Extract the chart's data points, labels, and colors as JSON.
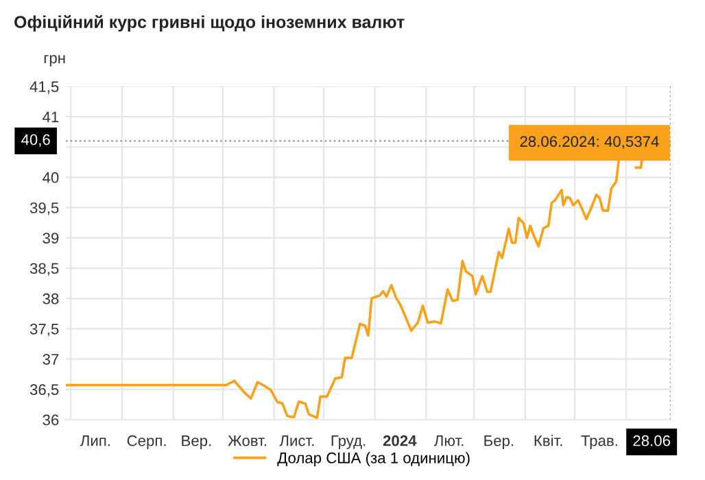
{
  "chart_data": {
    "type": "line",
    "title": "Офіційний курс гривні щодо іноземних валют",
    "ylabel": "грн",
    "x": [
      "2023-06-28",
      "2023-10-03",
      "2023-10-08",
      "2023-10-14",
      "2023-10-18",
      "2023-10-22",
      "2023-10-26",
      "2023-10-30",
      "2023-11-03",
      "2023-11-06",
      "2023-11-09",
      "2023-11-13",
      "2023-11-16",
      "2023-11-20",
      "2023-11-22",
      "2023-11-27",
      "2023-11-29",
      "2023-12-03",
      "2023-12-08",
      "2023-12-12",
      "2023-12-14",
      "2023-12-18",
      "2023-12-23",
      "2023-12-26",
      "2023-12-28",
      "2023-12-30",
      "2024-01-04",
      "2024-01-06",
      "2024-01-08",
      "2024-01-11",
      "2024-01-14",
      "2024-01-16",
      "2024-01-19",
      "2024-01-23",
      "2024-01-27",
      "2024-01-30",
      "2024-02-02",
      "2024-02-06",
      "2024-02-10",
      "2024-02-14",
      "2024-02-17",
      "2024-02-20",
      "2024-02-23",
      "2024-02-25",
      "2024-02-29",
      "2024-03-02",
      "2024-03-06",
      "2024-03-09",
      "2024-03-11",
      "2024-03-16",
      "2024-03-18",
      "2024-03-22",
      "2024-03-24",
      "2024-03-26",
      "2024-03-28",
      "2024-03-31",
      "2024-04-02",
      "2024-04-04",
      "2024-04-06",
      "2024-04-09",
      "2024-04-12",
      "2024-04-15",
      "2024-04-17",
      "2024-04-19",
      "2024-04-23",
      "2024-04-24",
      "2024-04-26",
      "2024-04-28",
      "2024-04-30",
      "2024-05-03",
      "2024-05-05",
      "2024-05-08",
      "2024-05-11",
      "2024-05-14",
      "2024-05-16",
      "2024-05-18",
      "2024-05-21",
      "2024-05-23",
      "2024-05-26",
      "2024-05-28",
      "2024-06-01",
      "2024-06-07",
      "2024-06-10",
      "2024-06-11",
      "2024-06-28"
    ],
    "series": [
      {
        "name": "Долар США (за 1 одиницю)",
        "color": "#f9a11b",
        "values": [
          36.57,
          36.57,
          36.64,
          36.45,
          36.35,
          36.62,
          36.56,
          36.49,
          36.29,
          36.27,
          36.06,
          36.04,
          36.3,
          36.26,
          36.09,
          36.03,
          36.38,
          36.38,
          36.68,
          36.7,
          37.02,
          37.02,
          37.58,
          37.55,
          37.39,
          38.0,
          38.05,
          38.12,
          38.03,
          38.22,
          38.0,
          37.92,
          37.73,
          37.47,
          37.6,
          37.88,
          37.6,
          37.62,
          37.59,
          38.15,
          37.96,
          37.98,
          38.62,
          38.45,
          38.37,
          38.07,
          38.37,
          38.11,
          38.11,
          38.77,
          38.67,
          39.15,
          38.92,
          38.92,
          39.33,
          39.24,
          39.0,
          39.2,
          39.05,
          38.86,
          39.16,
          39.2,
          39.58,
          39.62,
          39.79,
          39.54,
          39.67,
          39.66,
          39.54,
          39.62,
          39.5,
          39.31,
          39.5,
          39.71,
          39.66,
          39.45,
          39.45,
          39.81,
          39.93,
          40.37,
          null,
          40.16,
          40.16,
          40.41,
          40.5374
        ]
      }
    ],
    "xlim": [
      "2023-06-28",
      "2024-06-28"
    ],
    "xticks": [
      {
        "value": "2023-07-01",
        "label": null
      },
      {
        "value": "2023-08-01",
        "label": null
      },
      {
        "value": "2023-09-01",
        "label": null
      },
      {
        "value": "2023-10-01",
        "label": null
      },
      {
        "value": "2023-11-01",
        "label": null
      },
      {
        "value": "2023-12-01",
        "label": null
      },
      {
        "value": "2024-01-01",
        "label": null
      },
      {
        "value": "2024-02-01",
        "label": null
      },
      {
        "value": "2024-03-01",
        "label": null
      },
      {
        "value": "2024-04-01",
        "label": null
      },
      {
        "value": "2024-05-01",
        "label": null
      },
      {
        "value": "2024-06-01",
        "label": null
      },
      {
        "value": "2023-07-16",
        "label": "Лип."
      },
      {
        "value": "2023-08-16",
        "label": "Серп."
      },
      {
        "value": "2023-09-15",
        "label": "Вер."
      },
      {
        "value": "2023-10-16",
        "label": "Жовт."
      },
      {
        "value": "2023-11-15",
        "label": "Лист."
      },
      {
        "value": "2023-12-16",
        "label": "Груд."
      },
      {
        "value": "2024-01-16",
        "label": "2024"
      },
      {
        "value": "2024-02-15",
        "label": "Лют."
      },
      {
        "value": "2024-03-16",
        "label": "Бер."
      },
      {
        "value": "2024-04-15",
        "label": "Квіт."
      },
      {
        "value": "2024-05-16",
        "label": "Трав."
      },
      {
        "value": "2024-06-28",
        "label": "28.06"
      }
    ],
    "ylim": [
      36,
      41.5
    ],
    "yticks": [
      36,
      {
        "value": 36.5,
        "label": "36,5"
      },
      37,
      {
        "value": 37.5,
        "label": "37,5"
      },
      38,
      {
        "value": 38.5,
        "label": "38,5"
      },
      39,
      {
        "value": 39.5,
        "label": "39,5"
      },
      40,
      {
        "value": 40.5,
        "label": null
      },
      41,
      {
        "value": 41.5,
        "label": "41,5"
      }
    ],
    "grid": true,
    "legend": "bottom",
    "marker": "none",
    "line_style": "solid",
    "ref_lines": [
      {
        "axis": "y",
        "value": 40.6,
        "label": "40,6",
        "color": "#999999",
        "line_style": "dotted"
      },
      {
        "axis": "x",
        "value": "2024-06-28",
        "color": "#999999",
        "line_style": "dotted"
      }
    ],
    "annotations": [
      {
        "text": "28.06.2024: 40,5374",
        "x": "2024-06-28",
        "y": 40.5374
      }
    ]
  }
}
